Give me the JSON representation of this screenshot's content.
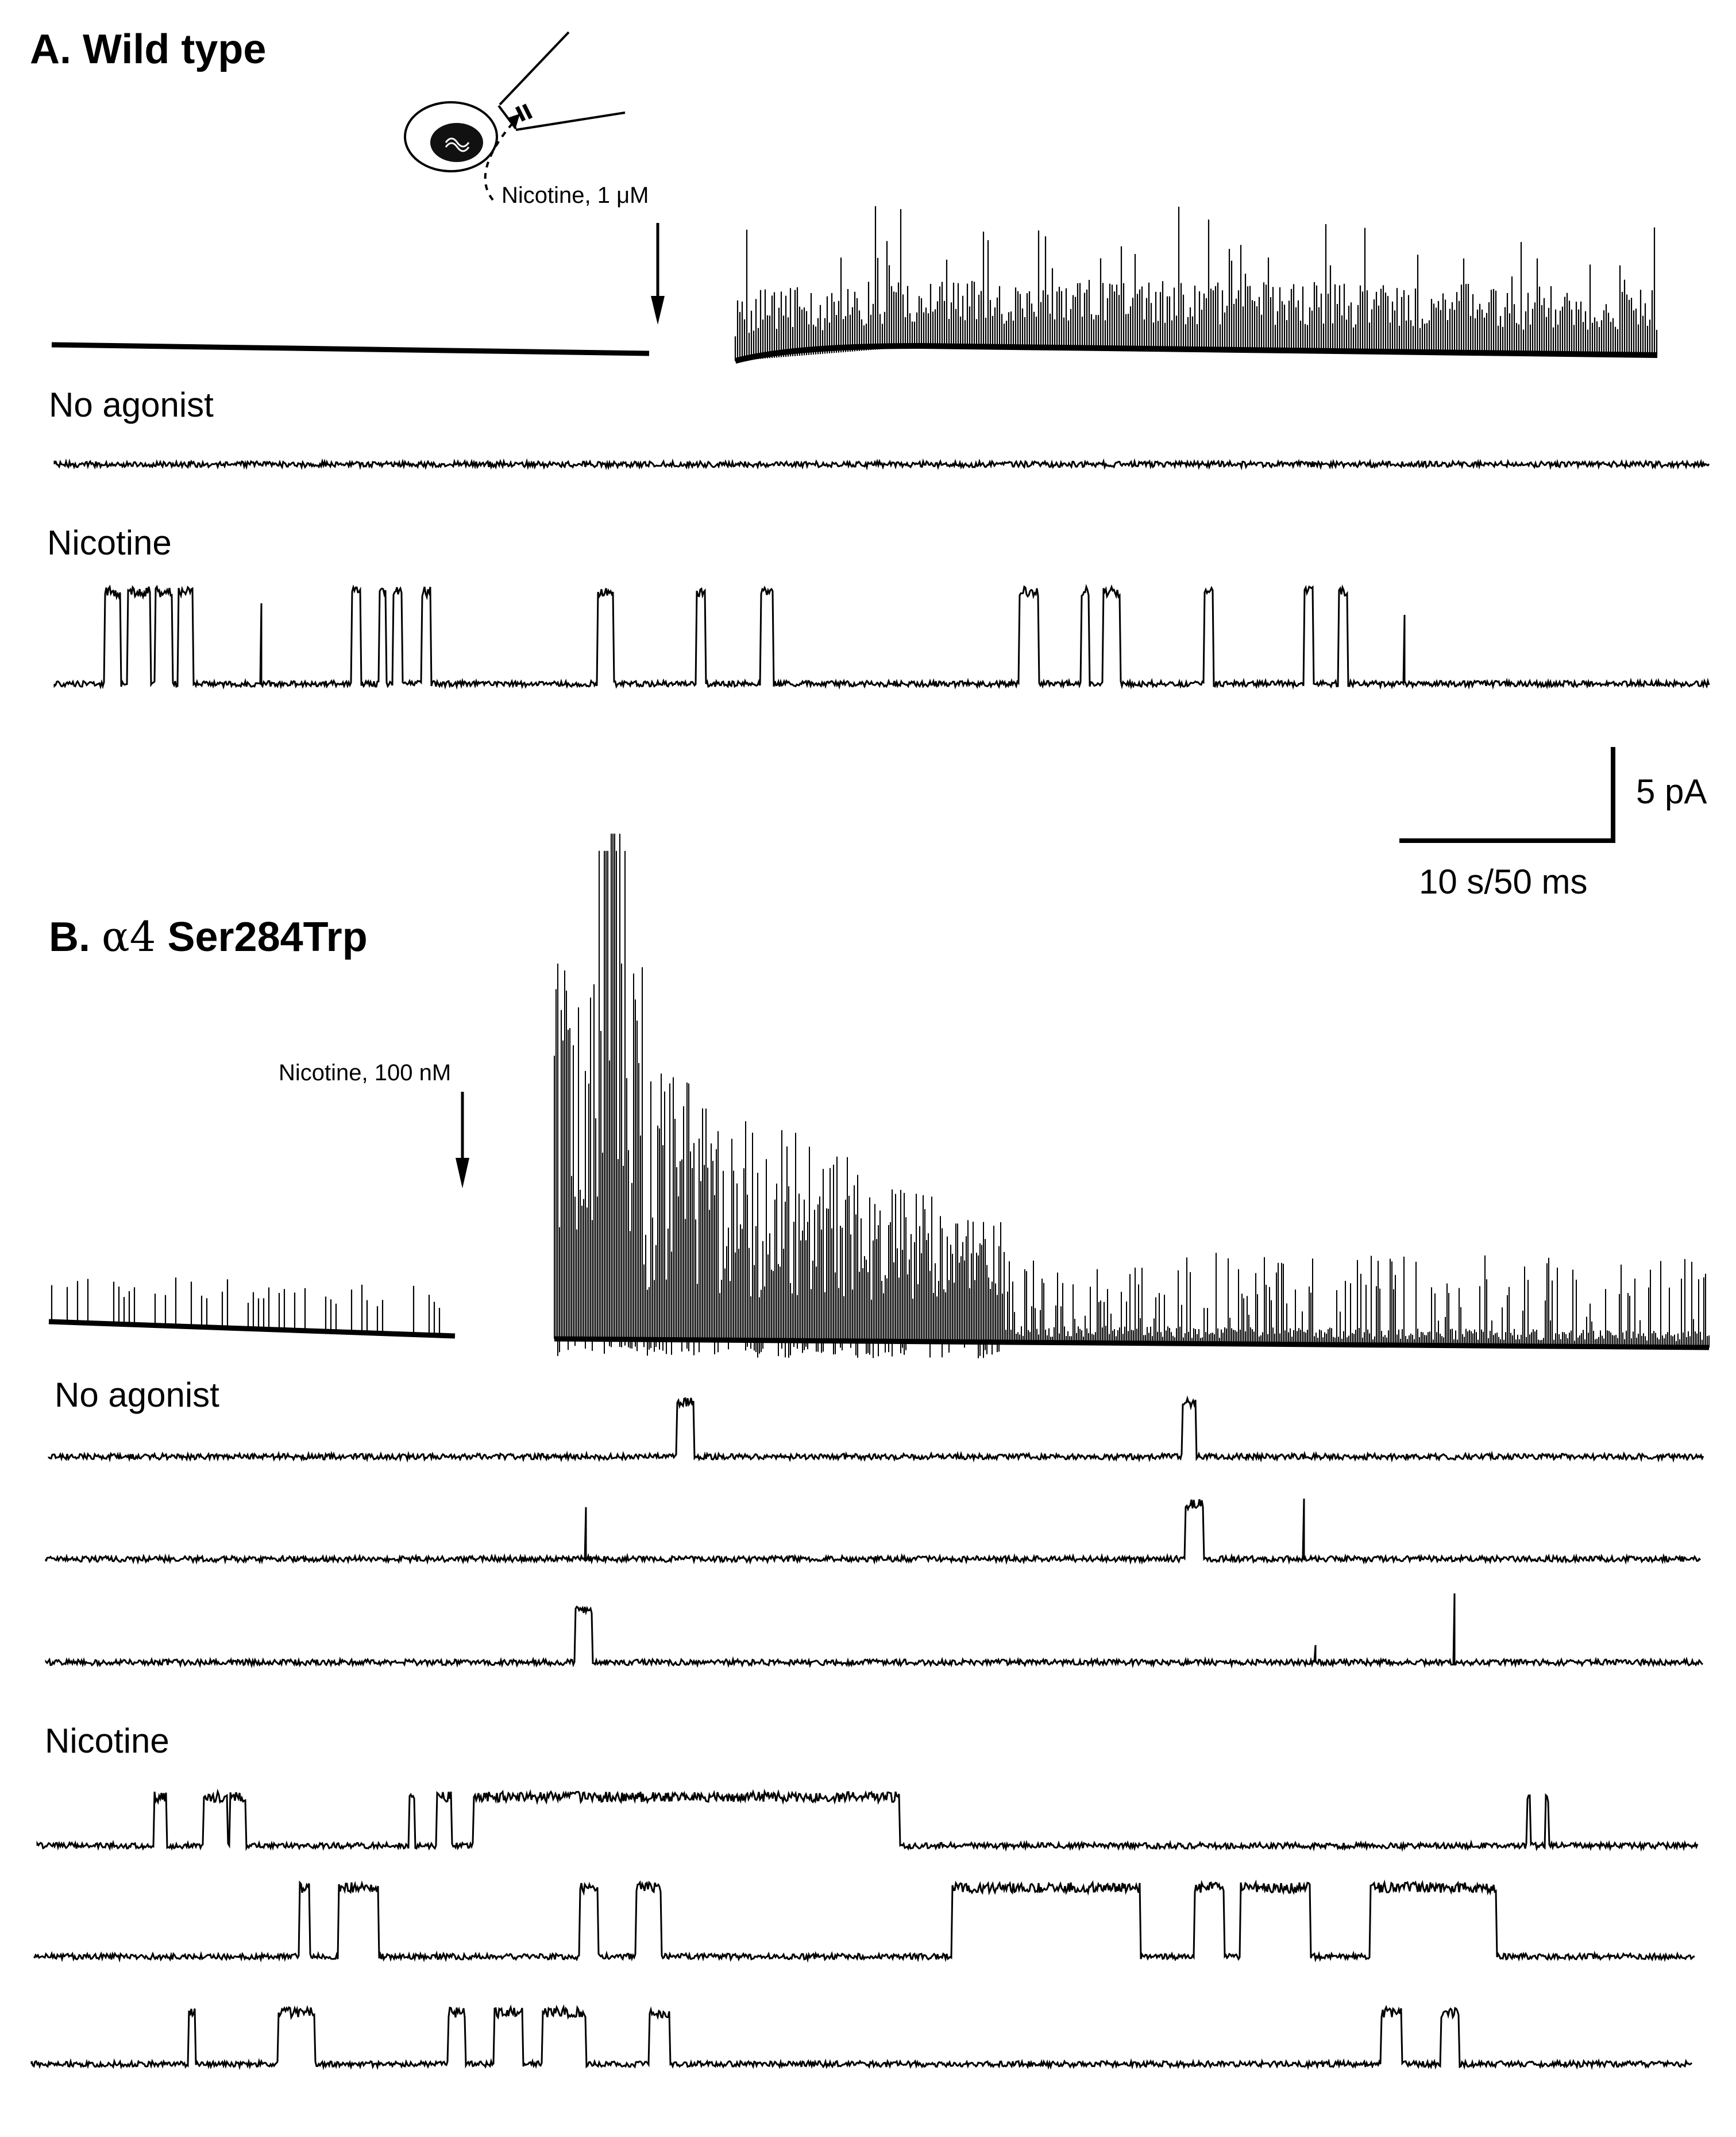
{
  "panels": [
    {
      "id": "A",
      "title": "A. Wild type",
      "application_label": "Nicotine, 1 μM",
      "row_labels": [
        "No agonist",
        "Nicotine"
      ]
    },
    {
      "id": "B",
      "title_prefix": "B. ",
      "title_greek": "α4",
      "title_mutation": " Ser284Trp",
      "application_label": "Nicotine, 100 nM",
      "row_labels": [
        "No agonist",
        "Nicotine"
      ]
    }
  ],
  "scale_bar": {
    "current_label": "5 pA",
    "time_label": "10 s/50 ms"
  },
  "icons": [
    "oocyte-patch-schematic-icon",
    "application-arrow-icon"
  ]
}
